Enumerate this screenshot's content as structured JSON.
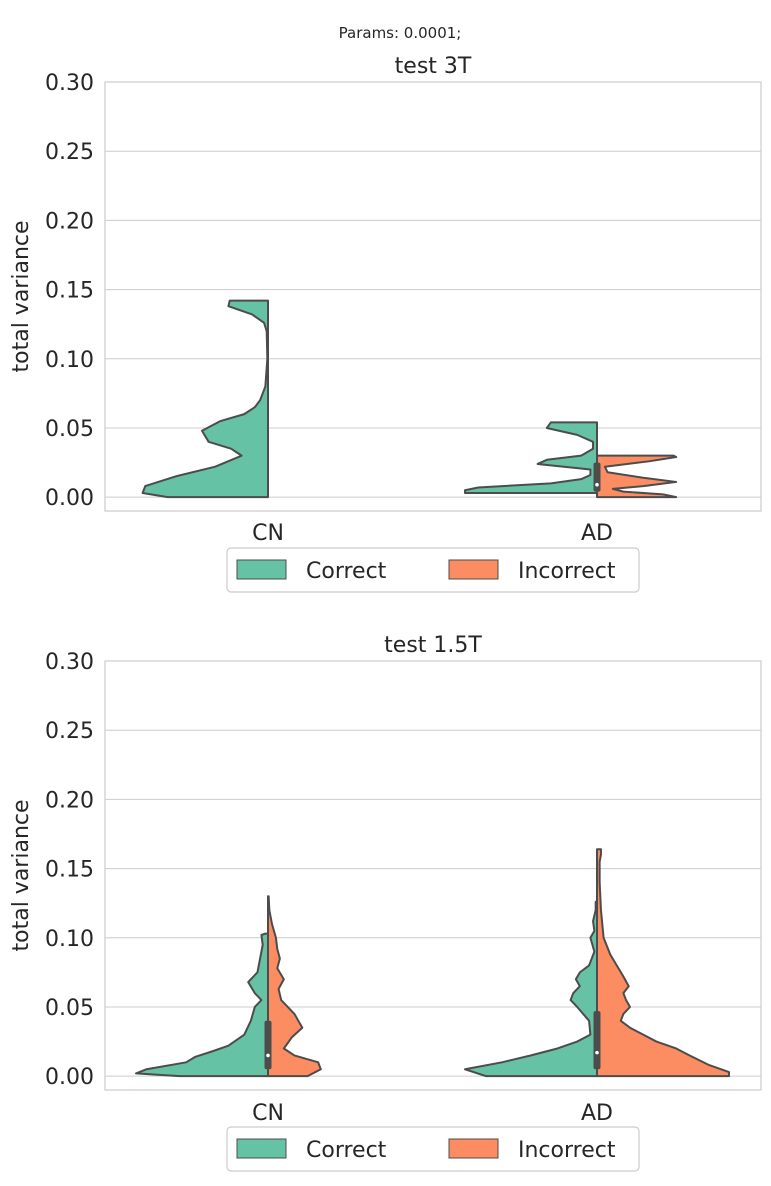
{
  "suptitle": "Params: 0.0001;",
  "colors": {
    "Correct": "#66c2a5",
    "Incorrect": "#fc8d62",
    "outline": "#4c4c4c",
    "grid": "#cccccc"
  },
  "chart_data": [
    {
      "type": "violin",
      "title": "test 3T",
      "xlabel": "",
      "ylabel": "total variance",
      "ylim": [
        -0.01,
        0.3
      ],
      "yticks": [
        "0.00",
        "0.05",
        "0.10",
        "0.15",
        "0.20",
        "0.25",
        "0.30"
      ],
      "categories": [
        "CN",
        "AD"
      ],
      "grid": true,
      "legend_position": "bottom-center",
      "legend": [
        "Correct",
        "Incorrect"
      ],
      "violins": [
        {
          "category": "CN",
          "series": "Correct",
          "side": "left",
          "ymin": 0.0,
          "ymax": 0.142,
          "profile": [
            [
              0.0,
              0.76
            ],
            [
              0.003,
              0.95
            ],
            [
              0.008,
              0.93
            ],
            [
              0.015,
              0.7
            ],
            [
              0.022,
              0.4
            ],
            [
              0.03,
              0.2
            ],
            [
              0.035,
              0.28
            ],
            [
              0.04,
              0.45
            ],
            [
              0.048,
              0.5
            ],
            [
              0.055,
              0.36
            ],
            [
              0.06,
              0.18
            ],
            [
              0.065,
              0.1
            ],
            [
              0.07,
              0.06
            ],
            [
              0.08,
              0.02
            ],
            [
              0.1,
              0.005
            ],
            [
              0.12,
              0.01
            ],
            [
              0.126,
              0.03
            ],
            [
              0.132,
              0.12
            ],
            [
              0.138,
              0.3
            ],
            [
              0.142,
              0.29
            ]
          ]
        },
        {
          "category": "AD",
          "series": "Correct",
          "side": "left",
          "ymin": 0.003,
          "ymax": 0.054,
          "profile": [
            [
              0.003,
              1.0
            ],
            [
              0.005,
              1.0
            ],
            [
              0.007,
              0.9
            ],
            [
              0.01,
              0.35
            ],
            [
              0.013,
              0.12
            ],
            [
              0.016,
              0.05
            ],
            [
              0.02,
              0.05
            ],
            [
              0.024,
              0.45
            ],
            [
              0.027,
              0.38
            ],
            [
              0.03,
              0.12
            ],
            [
              0.035,
              0.03
            ],
            [
              0.04,
              0.03
            ],
            [
              0.045,
              0.15
            ],
            [
              0.05,
              0.38
            ],
            [
              0.054,
              0.35
            ]
          ]
        },
        {
          "category": "AD",
          "series": "Incorrect",
          "side": "right",
          "ymin": 0.0,
          "ymax": 0.03,
          "profile": [
            [
              0.0,
              0.6
            ],
            [
              0.002,
              0.5
            ],
            [
              0.004,
              0.2
            ],
            [
              0.006,
              0.12
            ],
            [
              0.008,
              0.35
            ],
            [
              0.011,
              0.6
            ],
            [
              0.014,
              0.35
            ],
            [
              0.018,
              0.08
            ],
            [
              0.022,
              0.06
            ],
            [
              0.026,
              0.4
            ],
            [
              0.029,
              0.6
            ],
            [
              0.03,
              0.58
            ]
          ]
        }
      ],
      "boxes": [
        {
          "category": "AD",
          "q1": 0.004,
          "median": 0.009,
          "q3": 0.025,
          "whisker_low": 0.0,
          "whisker_high": 0.03
        }
      ]
    },
    {
      "type": "violin",
      "title": "test 1.5T",
      "xlabel": "",
      "ylabel": "total variance",
      "ylim": [
        -0.01,
        0.3
      ],
      "yticks": [
        "0.00",
        "0.05",
        "0.10",
        "0.15",
        "0.20",
        "0.25",
        "0.30"
      ],
      "categories": [
        "CN",
        "AD"
      ],
      "grid": true,
      "legend_position": "bottom-center",
      "legend": [
        "Correct",
        "Incorrect"
      ],
      "violins": [
        {
          "category": "CN",
          "series": "Correct",
          "side": "left",
          "ymin": 0.0,
          "ymax": 0.103,
          "profile": [
            [
              0.0,
              0.67
            ],
            [
              0.002,
              1.0
            ],
            [
              0.005,
              0.92
            ],
            [
              0.01,
              0.62
            ],
            [
              0.014,
              0.55
            ],
            [
              0.018,
              0.42
            ],
            [
              0.022,
              0.3
            ],
            [
              0.03,
              0.18
            ],
            [
              0.04,
              0.13
            ],
            [
              0.05,
              0.1
            ],
            [
              0.055,
              0.05
            ],
            [
              0.06,
              0.1
            ],
            [
              0.068,
              0.15
            ],
            [
              0.075,
              0.08
            ],
            [
              0.085,
              0.06
            ],
            [
              0.095,
              0.04
            ],
            [
              0.102,
              0.05
            ],
            [
              0.103,
              0.02
            ]
          ]
        },
        {
          "category": "CN",
          "series": "Incorrect",
          "side": "right",
          "ymin": 0.0,
          "ymax": 0.13,
          "profile": [
            [
              0.0,
              0.3
            ],
            [
              0.005,
              0.4
            ],
            [
              0.01,
              0.38
            ],
            [
              0.015,
              0.2
            ],
            [
              0.02,
              0.12
            ],
            [
              0.028,
              0.18
            ],
            [
              0.035,
              0.26
            ],
            [
              0.045,
              0.2
            ],
            [
              0.055,
              0.1
            ],
            [
              0.063,
              0.08
            ],
            [
              0.07,
              0.12
            ],
            [
              0.078,
              0.07
            ],
            [
              0.085,
              0.09
            ],
            [
              0.092,
              0.07
            ],
            [
              0.1,
              0.06
            ],
            [
              0.11,
              0.03
            ],
            [
              0.12,
              0.01
            ],
            [
              0.13,
              0.005
            ]
          ]
        },
        {
          "category": "AD",
          "series": "Correct",
          "side": "left",
          "ymin": 0.0,
          "ymax": 0.126,
          "profile": [
            [
              0.0,
              0.84
            ],
            [
              0.005,
              1.0
            ],
            [
              0.01,
              0.72
            ],
            [
              0.015,
              0.5
            ],
            [
              0.02,
              0.3
            ],
            [
              0.025,
              0.15
            ],
            [
              0.03,
              0.05
            ],
            [
              0.04,
              0.06
            ],
            [
              0.05,
              0.15
            ],
            [
              0.055,
              0.2
            ],
            [
              0.06,
              0.18
            ],
            [
              0.065,
              0.13
            ],
            [
              0.07,
              0.16
            ],
            [
              0.075,
              0.13
            ],
            [
              0.08,
              0.06
            ],
            [
              0.09,
              0.02
            ],
            [
              0.1,
              0.05
            ],
            [
              0.105,
              0.02
            ],
            [
              0.112,
              0.03
            ],
            [
              0.12,
              0.01
            ],
            [
              0.126,
              0.01
            ]
          ]
        },
        {
          "category": "AD",
          "series": "Incorrect",
          "side": "right",
          "ymin": 0.0,
          "ymax": 0.164,
          "profile": [
            [
              0.0,
              1.0
            ],
            [
              0.003,
              1.0
            ],
            [
              0.008,
              0.85
            ],
            [
              0.015,
              0.7
            ],
            [
              0.02,
              0.6
            ],
            [
              0.025,
              0.45
            ],
            [
              0.03,
              0.35
            ],
            [
              0.035,
              0.25
            ],
            [
              0.04,
              0.18
            ],
            [
              0.045,
              0.2
            ],
            [
              0.05,
              0.25
            ],
            [
              0.055,
              0.22
            ],
            [
              0.06,
              0.2
            ],
            [
              0.065,
              0.24
            ],
            [
              0.072,
              0.2
            ],
            [
              0.08,
              0.15
            ],
            [
              0.088,
              0.1
            ],
            [
              0.1,
              0.05
            ],
            [
              0.12,
              0.03
            ],
            [
              0.14,
              0.02
            ],
            [
              0.155,
              0.02
            ],
            [
              0.16,
              0.03
            ],
            [
              0.164,
              0.03
            ]
          ]
        }
      ],
      "boxes": [
        {
          "category": "CN",
          "q1": 0.005,
          "median": 0.015,
          "q3": 0.04,
          "whisker_low": 0.0,
          "whisker_high": 0.13
        },
        {
          "category": "AD",
          "q1": 0.005,
          "median": 0.017,
          "q3": 0.047,
          "whisker_low": 0.0,
          "whisker_high": 0.164
        }
      ]
    }
  ]
}
